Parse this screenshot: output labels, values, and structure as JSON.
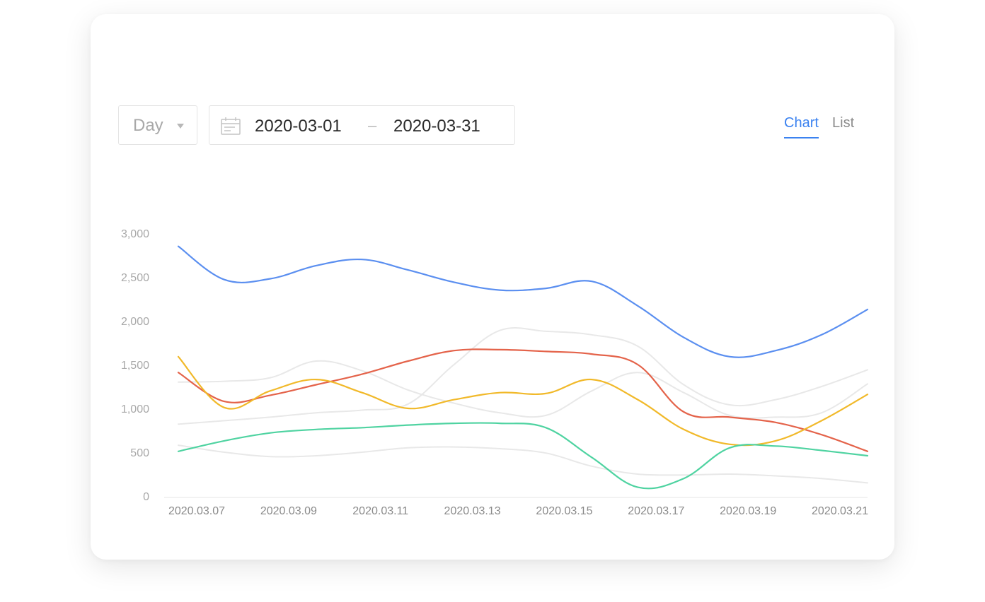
{
  "toolbar": {
    "period": "Day",
    "date_start": "2020-03-01",
    "date_separator": "–",
    "date_end": "2020-03-31"
  },
  "tabs": [
    {
      "label": "Chart",
      "active": true
    },
    {
      "label": "List",
      "active": false
    }
  ],
  "colors": {
    "accent": "#3b82f0",
    "blue": "#5b8ff0",
    "red": "#e4634a",
    "yellow": "#f1b92a",
    "green": "#4fd3a1",
    "muted": "#e8e8e8"
  },
  "chart_data": {
    "type": "line",
    "ylim": [
      0,
      3000
    ],
    "yticks": [
      0,
      500,
      1000,
      1500,
      2000,
      2500,
      3000
    ],
    "ytick_labels": [
      "0",
      "500",
      "1,000",
      "1,500",
      "2,000",
      "2,500",
      "3,000"
    ],
    "xlim": [
      "2020.03.07",
      "2020.03.22"
    ],
    "xticks": [
      "2020.03.07",
      "2020.03.09",
      "2020.03.11",
      "2020.03.13",
      "2020.03.15",
      "2020.03.17",
      "2020.03.19",
      "2020.03.21"
    ],
    "grid": false,
    "legend": "none",
    "series": [
      {
        "color": "#e8e8e8",
        "x": [
          "2020.03.07",
          "2020.03.08",
          "2020.03.09",
          "2020.03.10",
          "2020.03.11",
          "2020.03.12",
          "2020.03.13",
          "2020.03.14",
          "2020.03.15",
          "2020.03.16",
          "2020.03.17",
          "2020.03.18",
          "2020.03.19",
          "2020.03.20",
          "2020.03.21",
          "2020.03.22"
        ],
        "values": [
          1300,
          1310,
          1350,
          1540,
          1430,
          1210,
          1060,
          950,
          920,
          1200,
          1410,
          1180,
          920,
          900,
          950,
          1280
        ]
      },
      {
        "color": "#e8e8e8",
        "x": [
          "2020.03.07",
          "2020.03.08",
          "2020.03.09",
          "2020.03.10",
          "2020.03.11",
          "2020.03.12",
          "2020.03.13",
          "2020.03.14",
          "2020.03.15",
          "2020.03.16",
          "2020.03.17",
          "2020.03.18",
          "2020.03.19",
          "2020.03.20",
          "2020.03.21",
          "2020.03.22"
        ],
        "values": [
          820,
          860,
          900,
          950,
          980,
          1050,
          1500,
          1890,
          1880,
          1840,
          1710,
          1270,
          1040,
          1100,
          1250,
          1440
        ]
      },
      {
        "color": "#e8e8e8",
        "x": [
          "2020.03.07",
          "2020.03.08",
          "2020.03.09",
          "2020.03.10",
          "2020.03.11",
          "2020.03.12",
          "2020.03.13",
          "2020.03.14",
          "2020.03.15",
          "2020.03.16",
          "2020.03.17",
          "2020.03.18",
          "2020.03.19",
          "2020.03.20",
          "2020.03.21",
          "2020.03.22"
        ],
        "values": [
          580,
          500,
          450,
          460,
          500,
          550,
          560,
          540,
          490,
          340,
          250,
          240,
          250,
          230,
          200,
          150
        ]
      },
      {
        "color": "#5b8ff0",
        "x": [
          "2020.03.07",
          "2020.03.08",
          "2020.03.09",
          "2020.03.10",
          "2020.03.11",
          "2020.03.12",
          "2020.03.13",
          "2020.03.14",
          "2020.03.15",
          "2020.03.16",
          "2020.03.17",
          "2020.03.18",
          "2020.03.19",
          "2020.03.20",
          "2020.03.21",
          "2020.03.22"
        ],
        "values": [
          2850,
          2470,
          2480,
          2630,
          2700,
          2580,
          2440,
          2350,
          2370,
          2450,
          2170,
          1810,
          1590,
          1660,
          1840,
          2130
        ]
      },
      {
        "color": "#e4634a",
        "x": [
          "2020.03.07",
          "2020.03.08",
          "2020.03.09",
          "2020.03.10",
          "2020.03.11",
          "2020.03.12",
          "2020.03.13",
          "2020.03.14",
          "2020.03.15",
          "2020.03.16",
          "2020.03.17",
          "2020.03.18",
          "2020.03.19",
          "2020.03.20",
          "2020.03.21",
          "2020.03.22"
        ],
        "values": [
          1410,
          1080,
          1150,
          1270,
          1390,
          1540,
          1660,
          1670,
          1650,
          1620,
          1500,
          960,
          900,
          840,
          700,
          510
        ]
      },
      {
        "color": "#f1b92a",
        "x": [
          "2020.03.07",
          "2020.03.08",
          "2020.03.09",
          "2020.03.10",
          "2020.03.11",
          "2020.03.12",
          "2020.03.13",
          "2020.03.14",
          "2020.03.15",
          "2020.03.16",
          "2020.03.17",
          "2020.03.18",
          "2020.03.19",
          "2020.03.20",
          "2020.03.21",
          "2020.03.22"
        ],
        "values": [
          1590,
          1010,
          1200,
          1330,
          1180,
          1000,
          1100,
          1180,
          1170,
          1330,
          1100,
          760,
          590,
          630,
          860,
          1160
        ]
      },
      {
        "color": "#4fd3a1",
        "x": [
          "2020.03.07",
          "2020.03.08",
          "2020.03.09",
          "2020.03.10",
          "2020.03.11",
          "2020.03.12",
          "2020.03.13",
          "2020.03.14",
          "2020.03.15",
          "2020.03.16",
          "2020.03.17",
          "2020.03.18",
          "2020.03.19",
          "2020.03.20",
          "2020.03.21",
          "2020.03.22"
        ],
        "values": [
          510,
          630,
          720,
          760,
          780,
          810,
          830,
          830,
          780,
          440,
          100,
          200,
          550,
          570,
          520,
          460
        ]
      }
    ]
  }
}
